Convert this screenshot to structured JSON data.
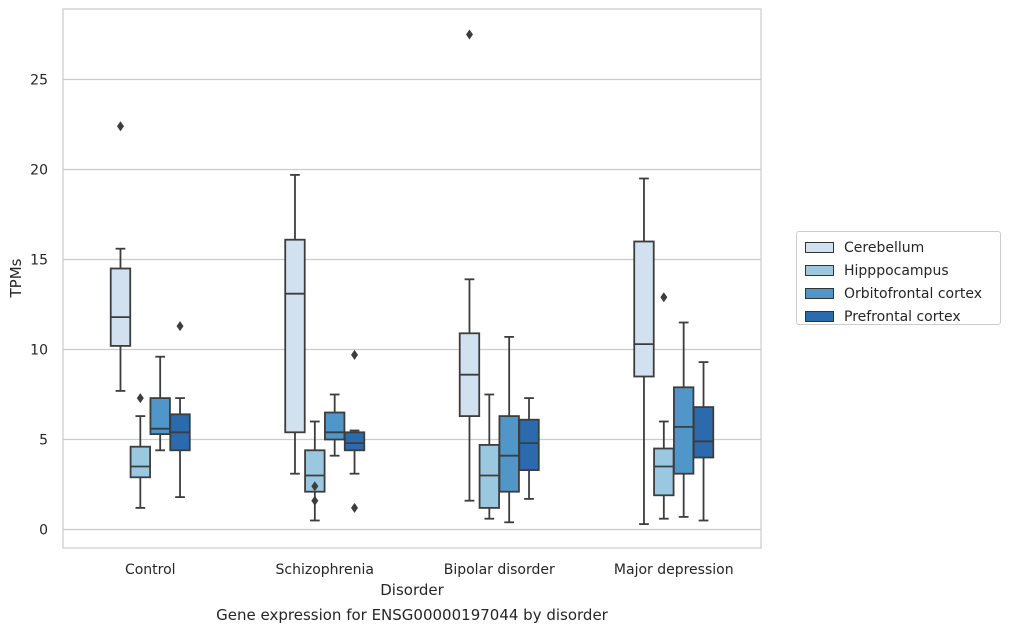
{
  "chart_data": {
    "type": "box",
    "xlabel": "Disorder",
    "ylabel": "TPMs",
    "ylim": [
      -1.0,
      28.6
    ],
    "yticks": [
      0,
      5,
      10,
      15,
      20,
      25
    ],
    "grid": "horizontal",
    "legend_position": "right",
    "categories": [
      "Control",
      "Schizophrenia",
      "Bipolar disorder",
      "Major depression"
    ],
    "series": [
      {
        "name": "Cerebellum",
        "color": "#d2e1f0",
        "boxes": [
          {
            "whisker_low": 7.7,
            "q1": 10.2,
            "median": 11.8,
            "q3": 14.5,
            "whisker_high": 15.6,
            "outliers": [
              22.4
            ]
          },
          {
            "whisker_low": 3.1,
            "q1": 5.4,
            "median": 13.1,
            "q3": 16.1,
            "whisker_high": 19.7,
            "outliers": []
          },
          {
            "whisker_low": 1.6,
            "q1": 6.3,
            "median": 8.6,
            "q3": 10.9,
            "whisker_high": 13.9,
            "outliers": [
              27.5
            ]
          },
          {
            "whisker_low": 0.3,
            "q1": 8.5,
            "median": 10.3,
            "q3": 16.0,
            "whisker_high": 19.5,
            "outliers": []
          }
        ]
      },
      {
        "name": "Hipppocampus",
        "color": "#9ac8e0",
        "boxes": [
          {
            "whisker_low": 1.2,
            "q1": 2.9,
            "median": 3.5,
            "q3": 4.6,
            "whisker_high": 6.3,
            "outliers": [
              7.3
            ]
          },
          {
            "whisker_low": 0.5,
            "q1": 2.1,
            "median": 3.0,
            "q3": 4.4,
            "whisker_high": 6.0,
            "outliers": [
              2.4,
              1.6
            ]
          },
          {
            "whisker_low": 0.6,
            "q1": 1.2,
            "median": 3.0,
            "q3": 4.7,
            "whisker_high": 7.5,
            "outliers": []
          },
          {
            "whisker_low": 0.6,
            "q1": 1.9,
            "median": 3.5,
            "q3": 4.5,
            "whisker_high": 6.0,
            "outliers": [
              12.9
            ]
          }
        ]
      },
      {
        "name": "Orbitofrontal cortex",
        "color": "#5096c8",
        "boxes": [
          {
            "whisker_low": 4.4,
            "q1": 5.3,
            "median": 5.6,
            "q3": 7.3,
            "whisker_high": 9.6,
            "outliers": []
          },
          {
            "whisker_low": 4.1,
            "q1": 5.0,
            "median": 5.4,
            "q3": 6.5,
            "whisker_high": 7.5,
            "outliers": []
          },
          {
            "whisker_low": 0.4,
            "q1": 2.1,
            "median": 4.1,
            "q3": 6.3,
            "whisker_high": 10.7,
            "outliers": []
          },
          {
            "whisker_low": 0.7,
            "q1": 3.1,
            "median": 5.7,
            "q3": 7.9,
            "whisker_high": 11.5,
            "outliers": []
          }
        ]
      },
      {
        "name": "Prefrontal cortex",
        "color": "#2a6aad",
        "boxes": [
          {
            "whisker_low": 1.8,
            "q1": 4.4,
            "median": 5.4,
            "q3": 6.4,
            "whisker_high": 7.3,
            "outliers": [
              11.3
            ]
          },
          {
            "whisker_low": 3.1,
            "q1": 4.4,
            "median": 4.8,
            "q3": 5.4,
            "whisker_high": 5.5,
            "outliers": [
              9.7,
              1.2
            ]
          },
          {
            "whisker_low": 1.7,
            "q1": 3.3,
            "median": 4.8,
            "q3": 6.1,
            "whisker_high": 7.3,
            "outliers": []
          },
          {
            "whisker_low": 0.5,
            "q1": 4.0,
            "median": 4.9,
            "q3": 6.8,
            "whisker_high": 9.3,
            "outliers": []
          }
        ]
      }
    ]
  },
  "caption": "Gene expression for ENSG00000197044 by disorder"
}
